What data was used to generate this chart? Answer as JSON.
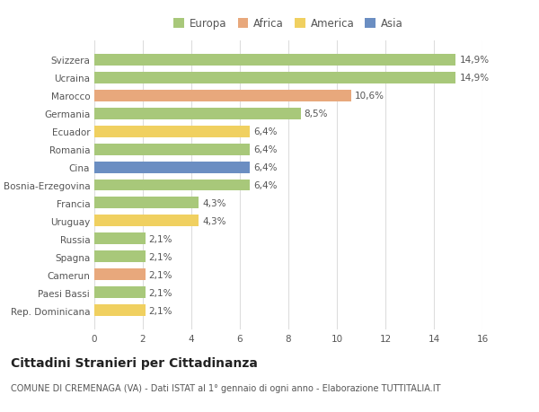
{
  "countries": [
    "Svizzera",
    "Ucraina",
    "Marocco",
    "Germania",
    "Ecuador",
    "Romania",
    "Cina",
    "Bosnia-Erzegovina",
    "Francia",
    "Uruguay",
    "Russia",
    "Spagna",
    "Camerun",
    "Paesi Bassi",
    "Rep. Dominicana"
  ],
  "values": [
    14.9,
    14.9,
    10.6,
    8.5,
    6.4,
    6.4,
    6.4,
    6.4,
    4.3,
    4.3,
    2.1,
    2.1,
    2.1,
    2.1,
    2.1
  ],
  "labels": [
    "14,9%",
    "14,9%",
    "10,6%",
    "8,5%",
    "6,4%",
    "6,4%",
    "6,4%",
    "6,4%",
    "4,3%",
    "4,3%",
    "2,1%",
    "2,1%",
    "2,1%",
    "2,1%",
    "2,1%"
  ],
  "continents": [
    "Europa",
    "Europa",
    "Africa",
    "Europa",
    "America",
    "Europa",
    "Asia",
    "Europa",
    "Europa",
    "America",
    "Europa",
    "Europa",
    "Africa",
    "Europa",
    "America"
  ],
  "colors": {
    "Europa": "#a8c87a",
    "Africa": "#e8a87c",
    "America": "#f0d060",
    "Asia": "#6b8ec2"
  },
  "title": "Cittadini Stranieri per Cittadinanza",
  "subtitle": "COMUNE DI CREMENAGA (VA) - Dati ISTAT al 1° gennaio di ogni anno - Elaborazione TUTTITALIA.IT",
  "xlim": [
    0,
    16
  ],
  "xticks": [
    0,
    2,
    4,
    6,
    8,
    10,
    12,
    14,
    16
  ],
  "background_color": "#ffffff",
  "bar_height": 0.65,
  "label_fontsize": 7.5,
  "tick_fontsize": 7.5,
  "title_fontsize": 10,
  "subtitle_fontsize": 7
}
